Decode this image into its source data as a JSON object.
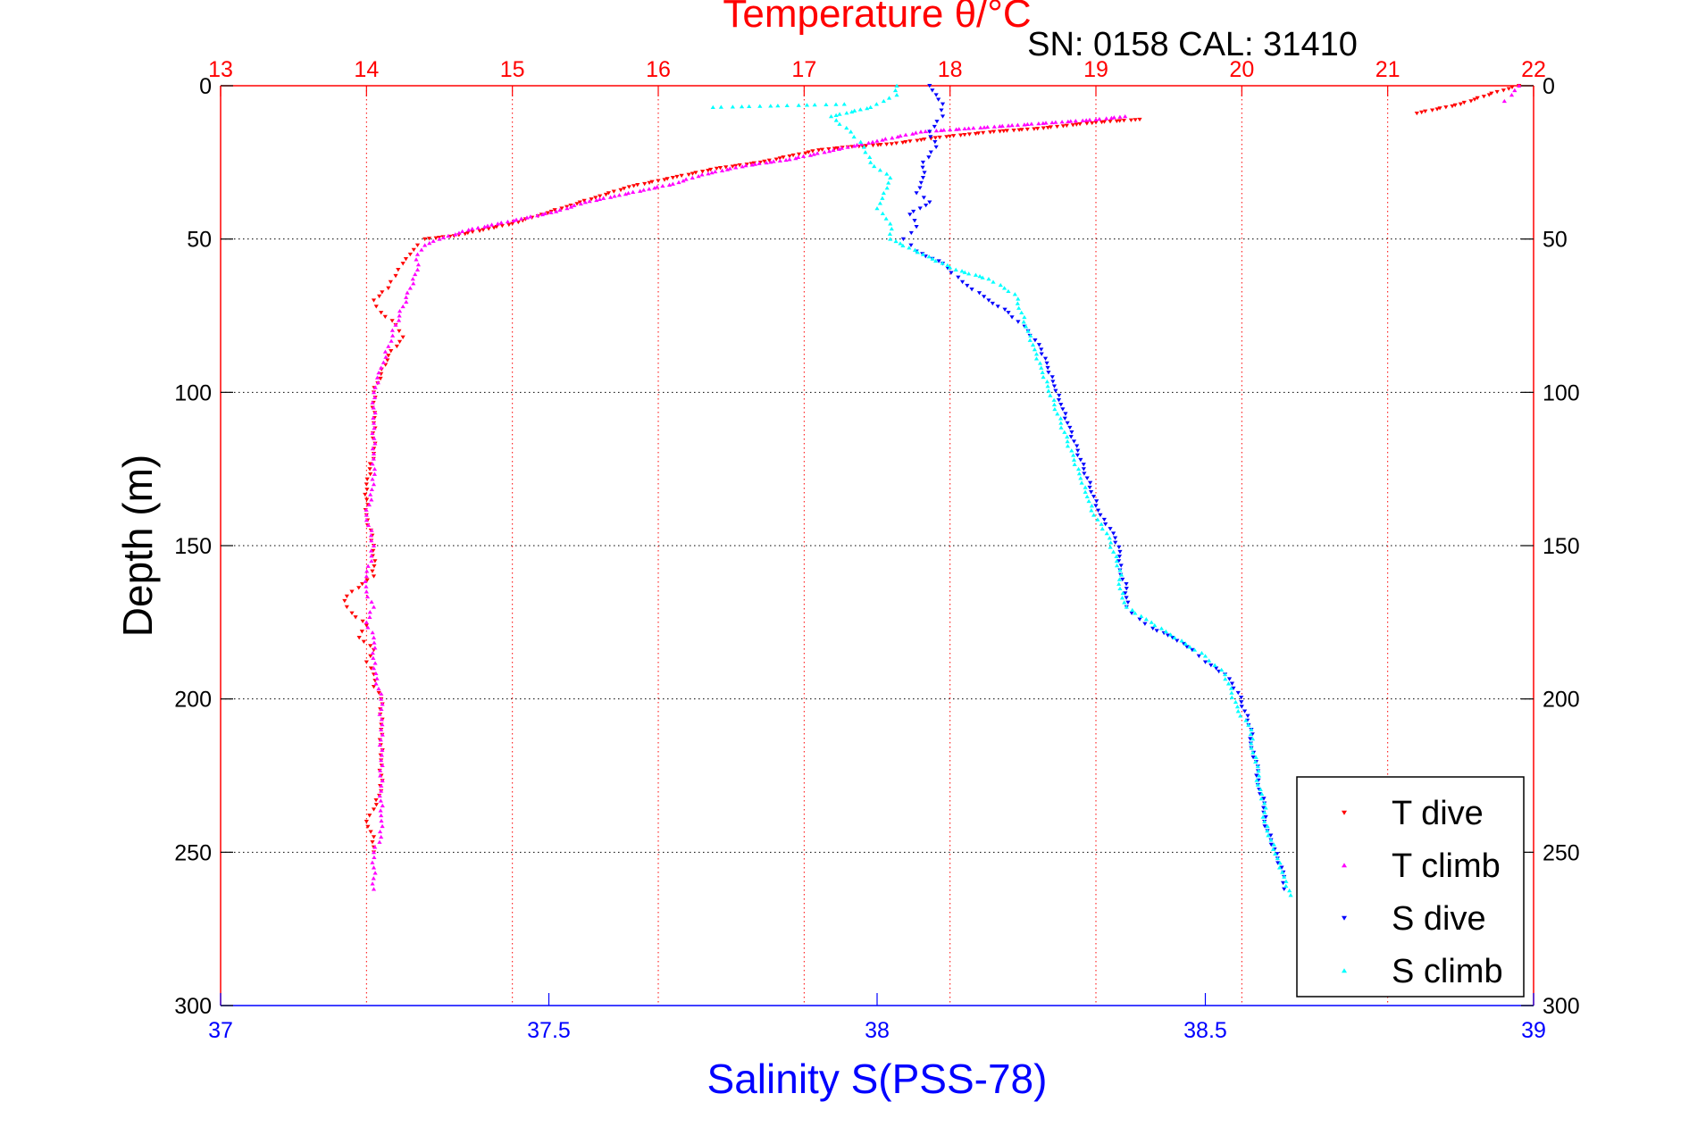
{
  "chart_data": {
    "type": "scatter",
    "title": "Temperature θ/°C",
    "subtitle": "SN: 0158  CAL: 31410",
    "ylabel": "Depth (m)",
    "xlabel_bottom": "Salinity S(PSS-78)",
    "y_axis": {
      "range": [
        0,
        300
      ],
      "inverted": true,
      "ticks": [
        0,
        50,
        100,
        150,
        200,
        250,
        300
      ]
    },
    "x_top": {
      "range": [
        13,
        22
      ],
      "ticks": [
        13,
        14,
        15,
        16,
        17,
        18,
        19,
        20,
        21,
        22
      ],
      "color": "#ff0000"
    },
    "x_bottom": {
      "range": [
        37,
        39
      ],
      "ticks": [
        37,
        37.5,
        38,
        38.5,
        39
      ],
      "color": "#0000ff"
    },
    "grid": true,
    "legend_position": "bottom-right",
    "series": [
      {
        "name": "T dive",
        "axis": "top",
        "marker": "triangle-down",
        "color": "#ff0000",
        "points": [
          [
            21.9,
            0
          ],
          [
            21.75,
            2
          ],
          [
            21.5,
            6
          ],
          [
            21.2,
            9
          ],
          [
            19.3,
            11
          ],
          [
            19.0,
            12
          ],
          [
            18.8,
            13
          ],
          [
            18.6,
            14
          ],
          [
            18.3,
            15
          ],
          [
            18.1,
            16
          ],
          [
            17.9,
            17
          ],
          [
            17.6,
            19
          ],
          [
            17.3,
            20
          ],
          [
            17.1,
            21
          ],
          [
            16.9,
            23
          ],
          [
            16.7,
            25
          ],
          [
            16.4,
            27
          ],
          [
            16.1,
            30
          ],
          [
            15.8,
            33
          ],
          [
            15.6,
            36
          ],
          [
            15.4,
            39
          ],
          [
            15.2,
            42
          ],
          [
            15.0,
            45
          ],
          [
            14.8,
            47
          ],
          [
            14.6,
            49
          ],
          [
            14.4,
            50
          ],
          [
            14.35,
            52
          ],
          [
            14.3,
            55
          ],
          [
            14.25,
            58
          ],
          [
            14.2,
            62
          ],
          [
            14.15,
            66
          ],
          [
            14.05,
            70
          ],
          [
            14.1,
            74
          ],
          [
            14.2,
            78
          ],
          [
            14.25,
            82
          ],
          [
            14.15,
            88
          ],
          [
            14.1,
            94
          ],
          [
            14.05,
            100
          ],
          [
            14.05,
            110
          ],
          [
            14.05,
            120
          ],
          [
            14.0,
            130
          ],
          [
            14.0,
            140
          ],
          [
            14.05,
            150
          ],
          [
            14.05,
            160
          ],
          [
            13.9,
            165
          ],
          [
            13.85,
            168
          ],
          [
            13.9,
            172
          ],
          [
            14.0,
            176
          ],
          [
            13.95,
            180
          ],
          [
            14.05,
            184
          ],
          [
            14.0,
            188
          ],
          [
            14.05,
            192
          ],
          [
            14.05,
            196
          ],
          [
            14.1,
            200
          ],
          [
            14.1,
            210
          ],
          [
            14.1,
            220
          ],
          [
            14.1,
            230
          ],
          [
            14.05,
            236
          ],
          [
            14.0,
            240
          ],
          [
            14.05,
            245
          ],
          [
            14.05,
            250
          ]
        ]
      },
      {
        "name": "T climb",
        "axis": "top",
        "marker": "triangle-up",
        "color": "#ff00ff",
        "points": [
          [
            14.05,
            262
          ],
          [
            14.05,
            255
          ],
          [
            14.05,
            250
          ],
          [
            14.1,
            245
          ],
          [
            14.1,
            238
          ],
          [
            14.1,
            230
          ],
          [
            14.1,
            220
          ],
          [
            14.1,
            210
          ],
          [
            14.1,
            200
          ],
          [
            14.05,
            190
          ],
          [
            14.05,
            180
          ],
          [
            14.0,
            175
          ],
          [
            14.05,
            170
          ],
          [
            14.0,
            165
          ],
          [
            14.0,
            160
          ],
          [
            14.05,
            150
          ],
          [
            14.0,
            140
          ],
          [
            14.05,
            130
          ],
          [
            14.05,
            120
          ],
          [
            14.05,
            110
          ],
          [
            14.05,
            100
          ],
          [
            14.1,
            92
          ],
          [
            14.15,
            85
          ],
          [
            14.2,
            78
          ],
          [
            14.25,
            72
          ],
          [
            14.3,
            66
          ],
          [
            14.35,
            60
          ],
          [
            14.35,
            55
          ],
          [
            14.4,
            52
          ],
          [
            14.5,
            50
          ],
          [
            14.7,
            47
          ],
          [
            14.9,
            45
          ],
          [
            15.1,
            43
          ],
          [
            15.3,
            41
          ],
          [
            15.5,
            38
          ],
          [
            15.7,
            36
          ],
          [
            15.9,
            34
          ],
          [
            16.1,
            32
          ],
          [
            16.3,
            29
          ],
          [
            16.6,
            26
          ],
          [
            16.9,
            24
          ],
          [
            17.2,
            21
          ],
          [
            17.5,
            18
          ],
          [
            17.8,
            15
          ],
          [
            18.1,
            14
          ],
          [
            18.4,
            13
          ],
          [
            18.7,
            12
          ],
          [
            19.0,
            11
          ],
          [
            19.2,
            10
          ],
          [
            21.9,
            0
          ],
          [
            21.85,
            3
          ],
          [
            21.8,
            5
          ]
        ]
      },
      {
        "name": "S dive",
        "axis": "bottom",
        "marker": "triangle-down",
        "color": "#0000ff",
        "points": [
          [
            38.08,
            0
          ],
          [
            38.09,
            3
          ],
          [
            38.1,
            6
          ],
          [
            38.1,
            10
          ],
          [
            38.08,
            15
          ],
          [
            38.09,
            20
          ],
          [
            38.07,
            25
          ],
          [
            38.07,
            30
          ],
          [
            38.06,
            35
          ],
          [
            38.08,
            38
          ],
          [
            38.05,
            42
          ],
          [
            38.06,
            46
          ],
          [
            38.04,
            50
          ],
          [
            38.06,
            54
          ],
          [
            38.1,
            58
          ],
          [
            38.13,
            64
          ],
          [
            38.17,
            70
          ],
          [
            38.2,
            74
          ],
          [
            38.23,
            80
          ],
          [
            38.25,
            86
          ],
          [
            38.26,
            92
          ],
          [
            38.27,
            98
          ],
          [
            38.28,
            104
          ],
          [
            38.29,
            110
          ],
          [
            38.3,
            116
          ],
          [
            38.31,
            122
          ],
          [
            38.32,
            128
          ],
          [
            38.33,
            134
          ],
          [
            38.34,
            140
          ],
          [
            38.36,
            146
          ],
          [
            38.37,
            152
          ],
          [
            38.37,
            158
          ],
          [
            38.38,
            164
          ],
          [
            38.38,
            170
          ],
          [
            38.4,
            174
          ],
          [
            38.42,
            177
          ],
          [
            38.45,
            180
          ],
          [
            38.48,
            184
          ],
          [
            38.5,
            188
          ],
          [
            38.53,
            192
          ],
          [
            38.55,
            198
          ],
          [
            38.56,
            204
          ],
          [
            38.57,
            210
          ],
          [
            38.57,
            216
          ],
          [
            38.58,
            222
          ],
          [
            38.58,
            228
          ],
          [
            38.59,
            234
          ],
          [
            38.59,
            240
          ],
          [
            38.6,
            246
          ],
          [
            38.61,
            252
          ],
          [
            38.62,
            258
          ],
          [
            38.62,
            262
          ]
        ]
      },
      {
        "name": "S climb",
        "axis": "bottom",
        "marker": "triangle-up",
        "color": "#00ffff",
        "points": [
          [
            38.63,
            264
          ],
          [
            38.62,
            258
          ],
          [
            38.61,
            252
          ],
          [
            38.6,
            246
          ],
          [
            38.59,
            240
          ],
          [
            38.59,
            234
          ],
          [
            38.58,
            228
          ],
          [
            38.58,
            222
          ],
          [
            38.57,
            216
          ],
          [
            38.57,
            210
          ],
          [
            38.55,
            204
          ],
          [
            38.54,
            198
          ],
          [
            38.53,
            192
          ],
          [
            38.5,
            186
          ],
          [
            38.47,
            182
          ],
          [
            38.44,
            178
          ],
          [
            38.41,
            174
          ],
          [
            38.38,
            170
          ],
          [
            38.37,
            164
          ],
          [
            38.37,
            158
          ],
          [
            38.36,
            152
          ],
          [
            38.35,
            146
          ],
          [
            38.33,
            140
          ],
          [
            38.32,
            134
          ],
          [
            38.31,
            128
          ],
          [
            38.3,
            122
          ],
          [
            38.29,
            116
          ],
          [
            38.28,
            110
          ],
          [
            38.27,
            104
          ],
          [
            38.26,
            98
          ],
          [
            38.25,
            92
          ],
          [
            38.24,
            86
          ],
          [
            38.23,
            80
          ],
          [
            38.22,
            74
          ],
          [
            38.21,
            68
          ],
          [
            38.17,
            63
          ],
          [
            38.12,
            60
          ],
          [
            38.07,
            55
          ],
          [
            38.02,
            50
          ],
          [
            38.02,
            45
          ],
          [
            38.0,
            40
          ],
          [
            38.01,
            35
          ],
          [
            38.02,
            30
          ],
          [
            37.99,
            25
          ],
          [
            37.98,
            20
          ],
          [
            37.96,
            15
          ],
          [
            37.93,
            10
          ],
          [
            37.99,
            7
          ],
          [
            38.01,
            5
          ],
          [
            38.03,
            3
          ],
          [
            38.03,
            0
          ],
          [
            37.75,
            7
          ],
          [
            37.95,
            6
          ]
        ]
      }
    ]
  }
}
